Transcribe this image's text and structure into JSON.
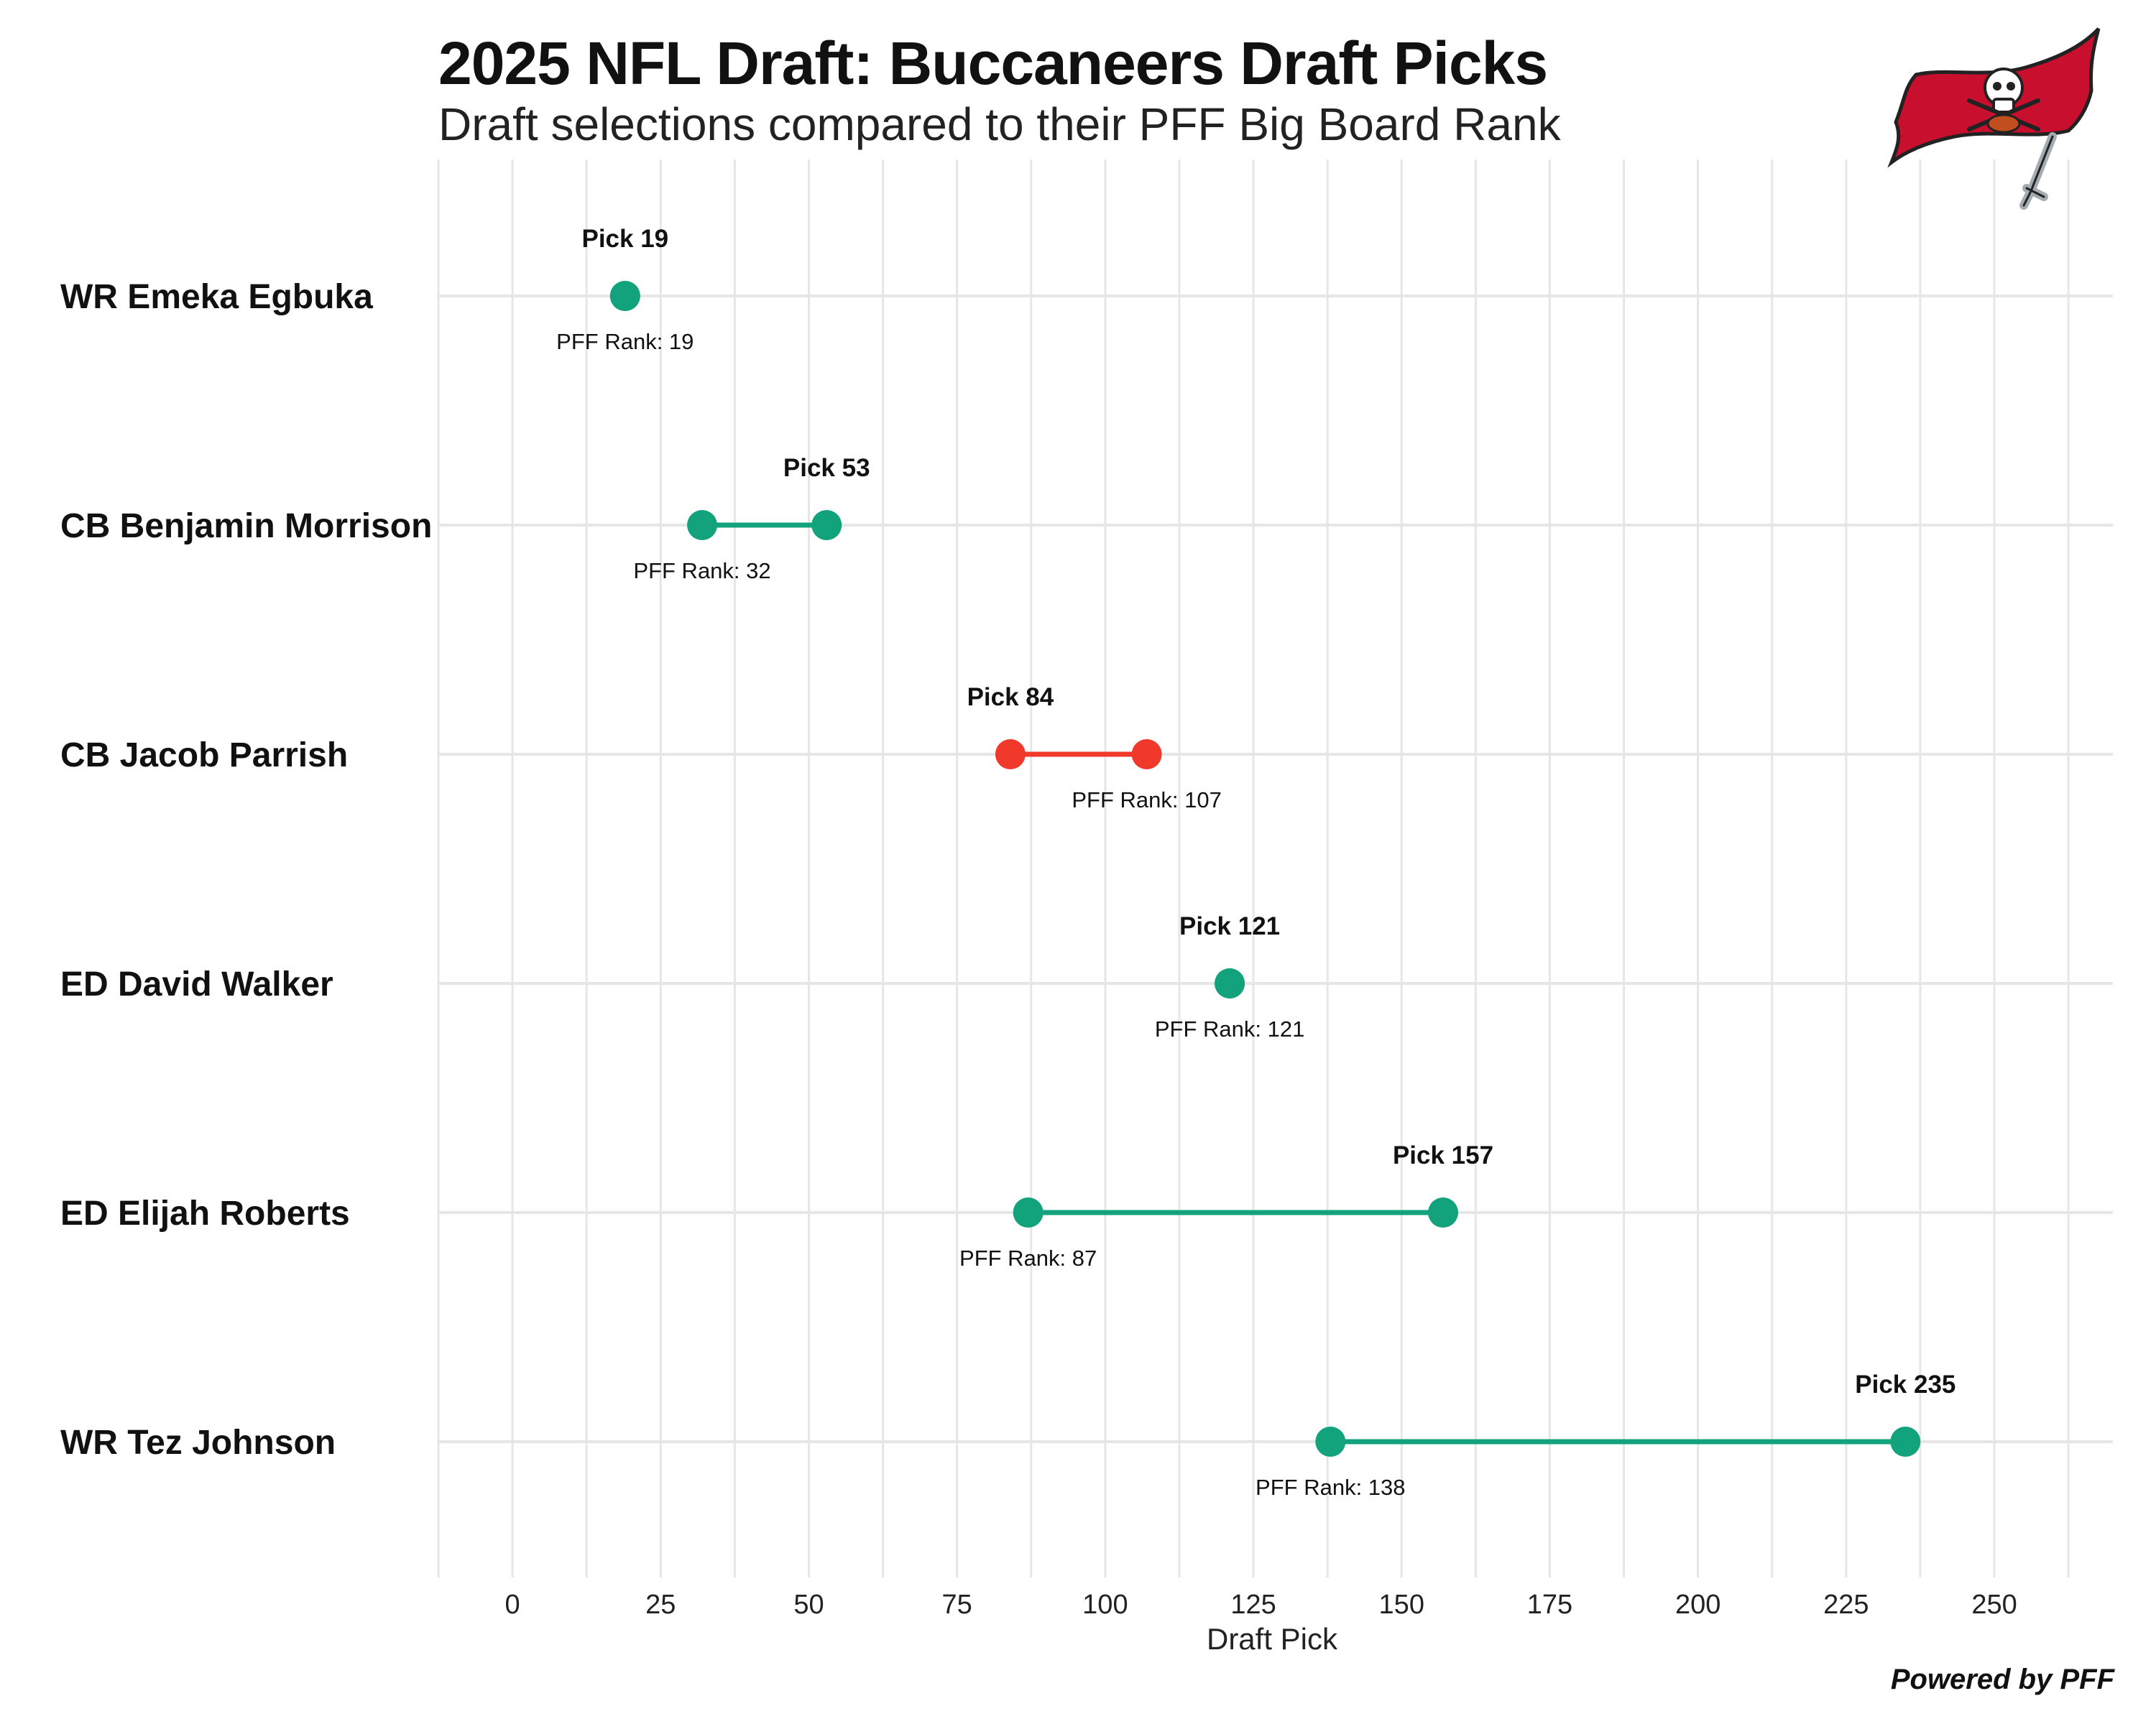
{
  "header": {
    "title": "2025 NFL Draft: Buccaneers Draft Picks",
    "subtitle": "Draft selections compared to their PFF Big Board Rank"
  },
  "logo": {
    "icon": "buccaneers-flag-icon",
    "colors": {
      "flag": "#C8102E",
      "skull": "#ffffff",
      "ball": "#C24E1E",
      "sword": "#A5ACAF"
    }
  },
  "caption": "Powered by PFF",
  "colors": {
    "positive": "#12A27C",
    "negative": "#F0392B",
    "grid": "#E6E6E6"
  },
  "chart_data": {
    "type": "dumbbell",
    "xlabel": "Draft Pick",
    "xlim": [
      -12.5,
      270
    ],
    "xticks": [
      0,
      25,
      50,
      75,
      100,
      125,
      150,
      175,
      200,
      225,
      250
    ],
    "pick_prefix": "Pick ",
    "rank_prefix": "PFF Rank: ",
    "players": [
      {
        "name": "WR Emeka Egbuka",
        "pick": 19,
        "pff_rank": 19,
        "color": "#12A27C"
      },
      {
        "name": "CB Benjamin Morrison",
        "pick": 53,
        "pff_rank": 32,
        "color": "#12A27C"
      },
      {
        "name": "CB Jacob Parrish",
        "pick": 84,
        "pff_rank": 107,
        "color": "#F0392B"
      },
      {
        "name": "ED David Walker",
        "pick": 121,
        "pff_rank": 121,
        "color": "#12A27C"
      },
      {
        "name": "ED Elijah Roberts",
        "pick": 157,
        "pff_rank": 87,
        "color": "#12A27C"
      },
      {
        "name": "WR Tez Johnson",
        "pick": 235,
        "pff_rank": 138,
        "color": "#12A27C"
      }
    ]
  }
}
